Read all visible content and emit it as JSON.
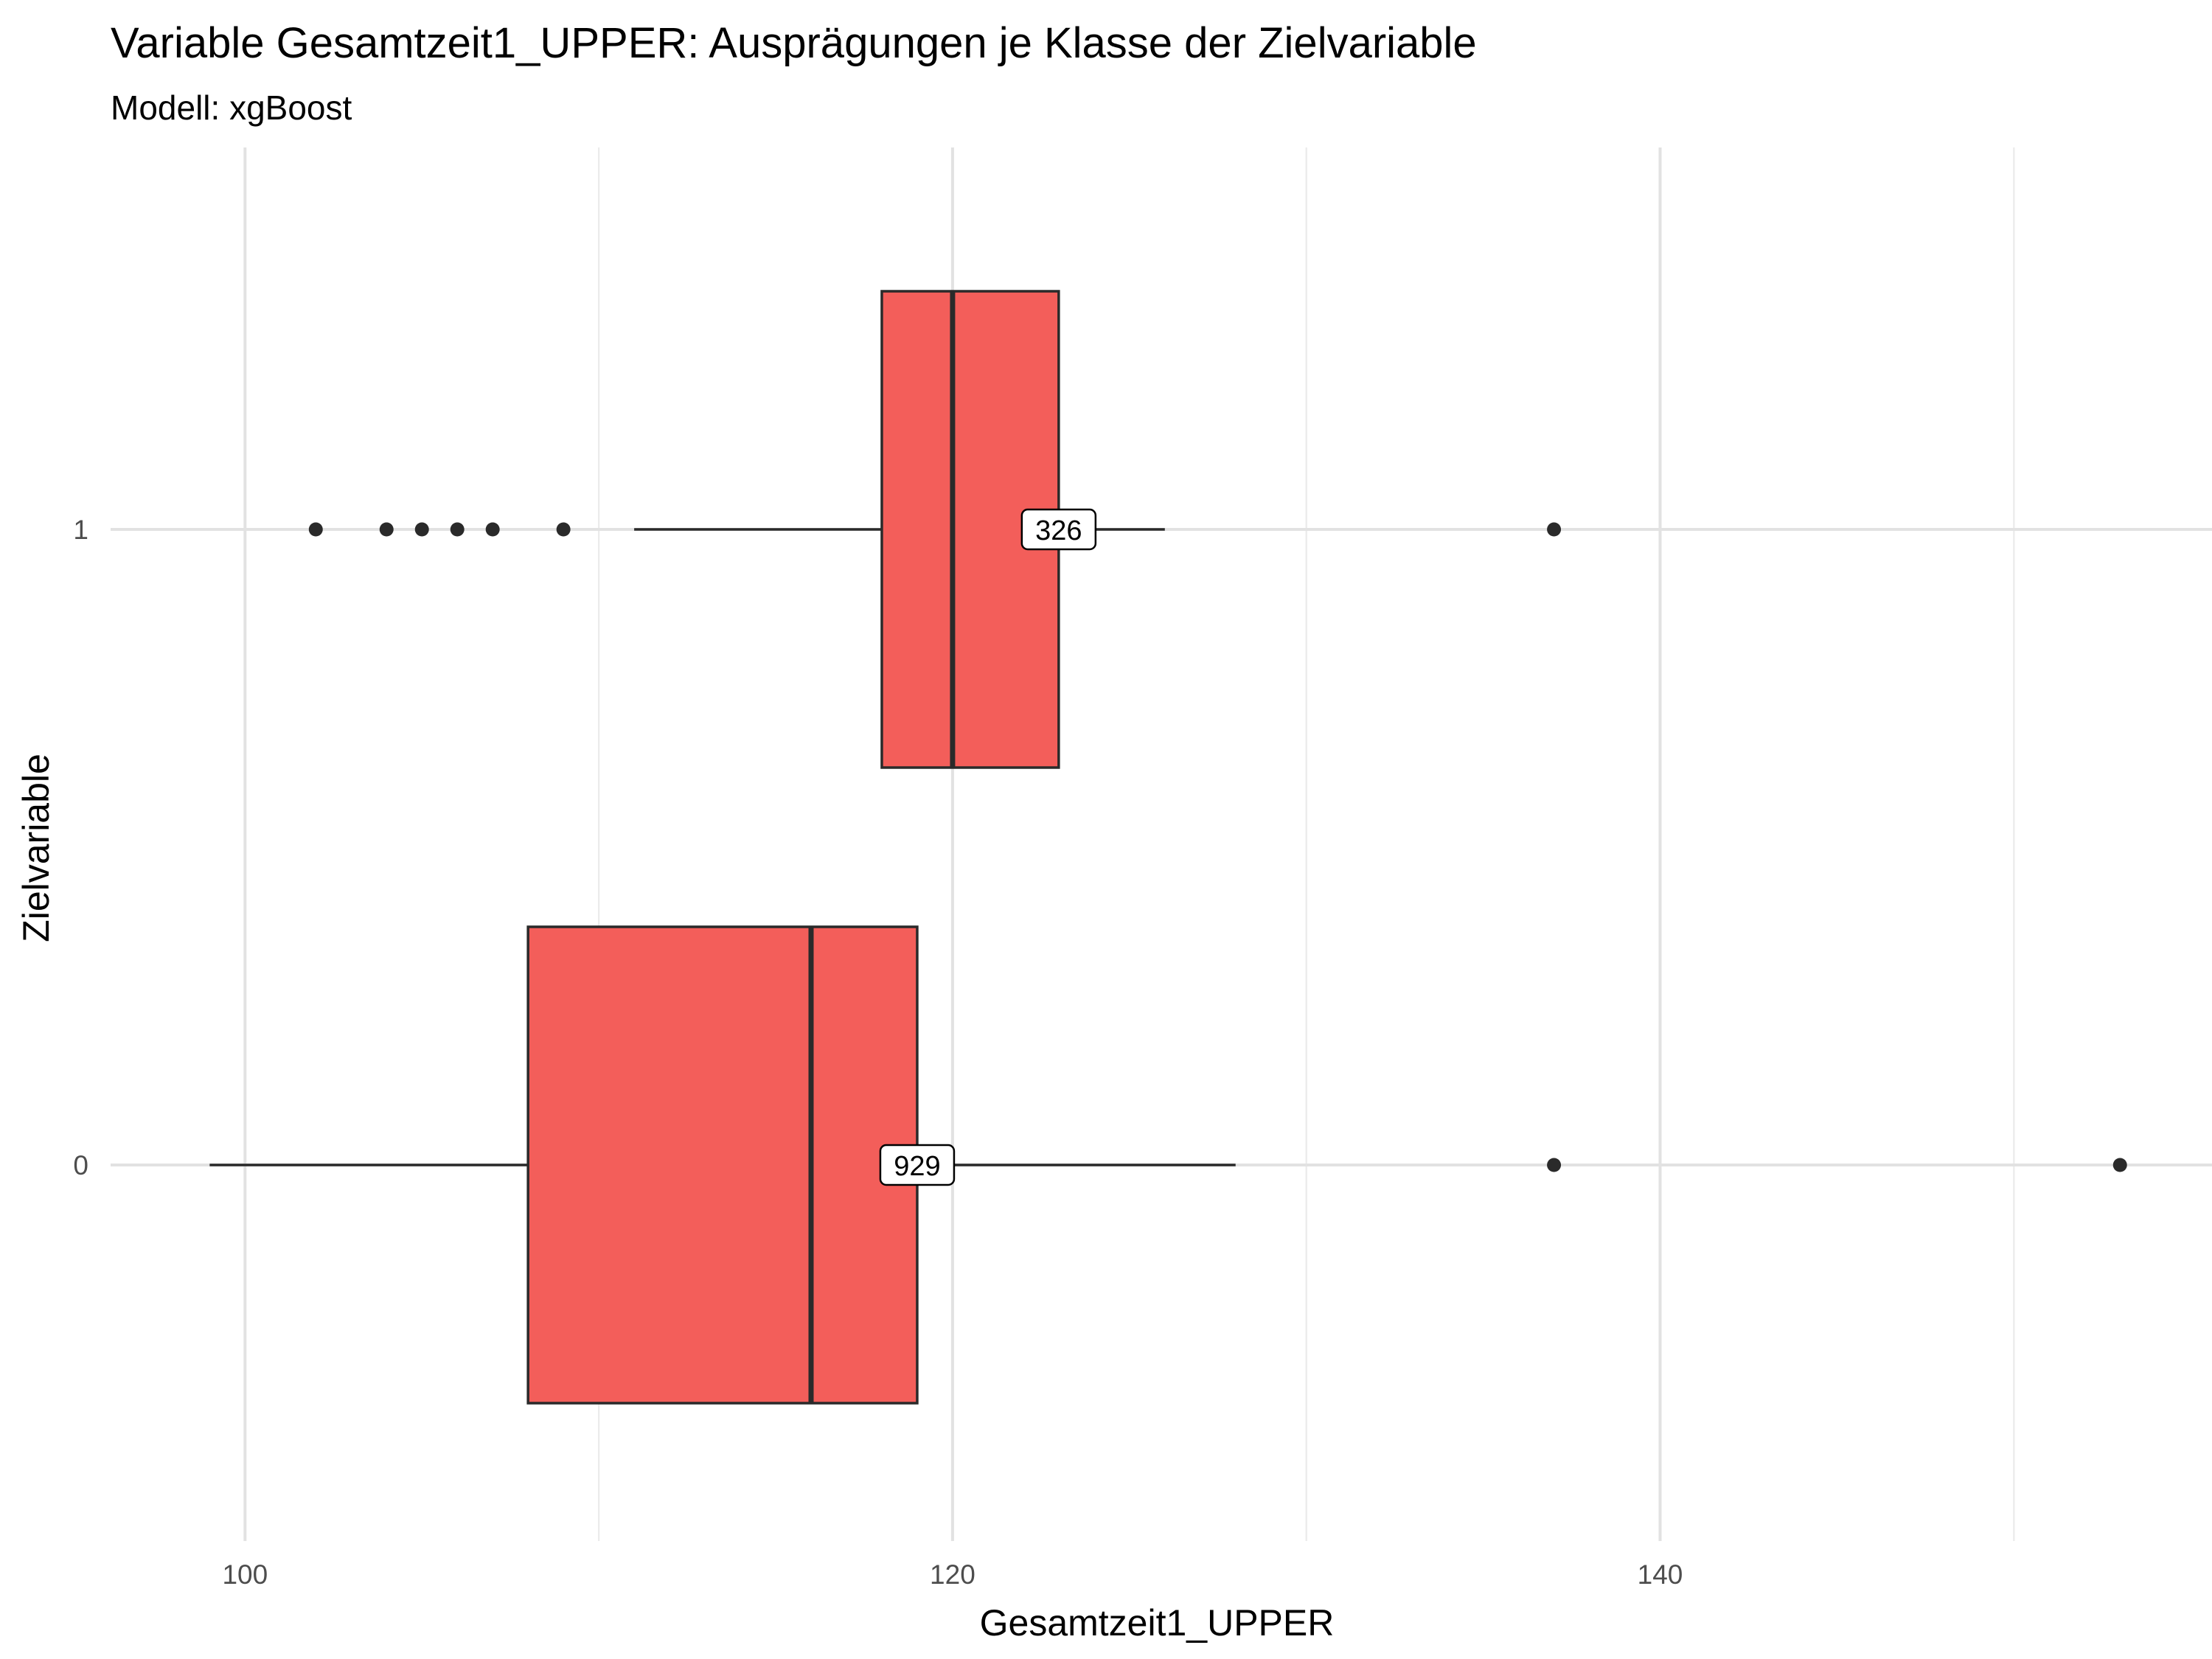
{
  "chart_data": {
    "type": "boxplot",
    "orientation": "horizontal",
    "title": "Variable Gesamtzeit1_UPPER: Ausprägungen je Klasse der Zielvariable",
    "subtitle": "Modell: xgBoost",
    "xlabel": "Gesamtzeit1_UPPER",
    "ylabel": "Zielvariable",
    "xlim": [
      96.2,
      155.6
    ],
    "x_ticks": [
      100,
      120,
      140
    ],
    "x_minor_ticks": [
      110,
      130,
      150
    ],
    "grid": true,
    "fill_color": "#F35E5A",
    "outline_color": "#2a2a2a",
    "categories": [
      "1",
      "0"
    ],
    "boxes": [
      {
        "category": "1",
        "lower_whisker": 111,
        "q1": 118,
        "median": 120,
        "q3": 123,
        "upper_whisker": 126,
        "outliers": [
          102,
          104,
          105,
          106,
          107,
          109,
          137
        ],
        "count_label": "326"
      },
      {
        "category": "0",
        "lower_whisker": 99,
        "q1": 108,
        "median": 116,
        "q3": 119,
        "upper_whisker": 128,
        "outliers": [
          137,
          153
        ],
        "count_label": "929"
      }
    ]
  }
}
